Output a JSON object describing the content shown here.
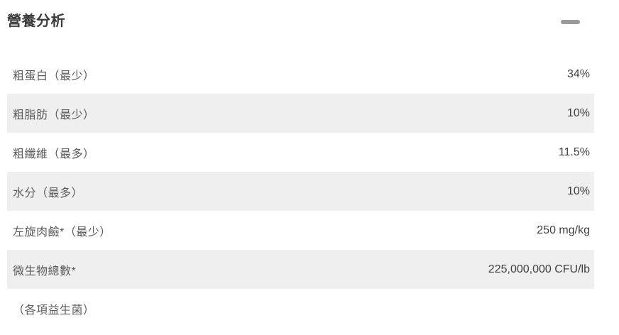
{
  "header": {
    "title": "營養分析",
    "collapse_icon": "minus-icon"
  },
  "table": {
    "rows": [
      {
        "label": "粗蛋白（最少）",
        "value": "34%"
      },
      {
        "label": "粗脂肪（最少）",
        "value": "10%"
      },
      {
        "label": "粗纖維（最多）",
        "value": "11.5%"
      },
      {
        "label": "水分（最多）",
        "value": "10%"
      },
      {
        "label": "左旋肉鹼*（最少）",
        "value": "250 mg/kg"
      },
      {
        "label": "微生物總數*",
        "value": "225,000,000 CFU/lb"
      },
      {
        "label": "（各項益生菌）",
        "value": ""
      }
    ]
  },
  "colors": {
    "row_alt_bg": "#efefef",
    "label_text": "#5b5b5b",
    "value_text": "#3f3f3f",
    "title_text": "#3a3a3a",
    "minus_icon": "#9a9a9a"
  }
}
